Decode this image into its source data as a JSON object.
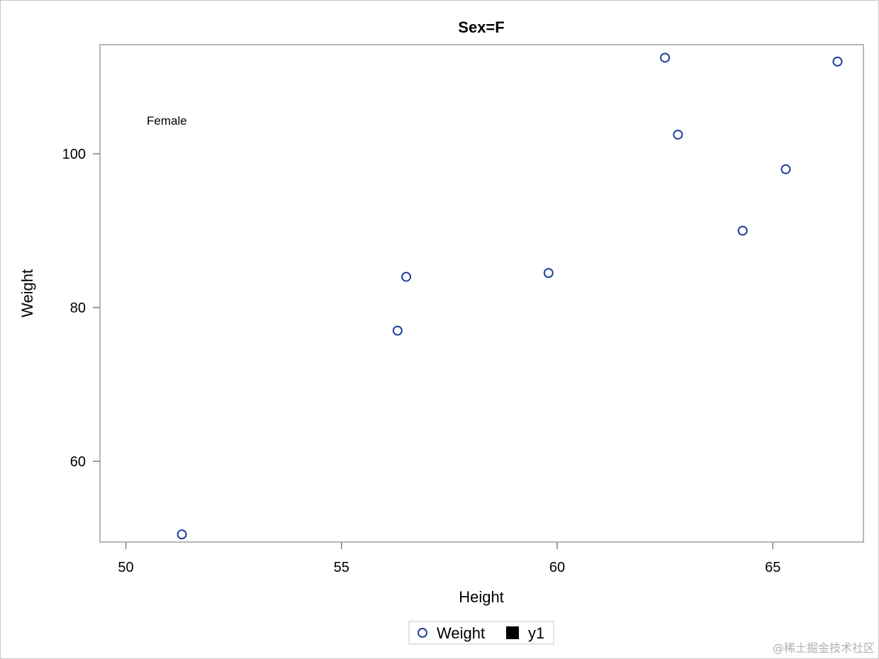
{
  "chart_data": {
    "type": "scatter",
    "title": "Sex=F",
    "xlabel": "Height",
    "ylabel": "Weight",
    "xlim": [
      49.4,
      67.1
    ],
    "ylim": [
      49.5,
      114.2
    ],
    "x_ticks": [
      50,
      55,
      60,
      65
    ],
    "y_ticks": [
      60,
      80,
      100
    ],
    "series": [
      {
        "name": "Weight",
        "marker": "open-circle",
        "color": "#1f3f99",
        "points": [
          {
            "x": 51.3,
            "y": 50.5
          },
          {
            "x": 56.3,
            "y": 77.0
          },
          {
            "x": 56.5,
            "y": 84.0
          },
          {
            "x": 59.8,
            "y": 84.5
          },
          {
            "x": 62.5,
            "y": 112.5
          },
          {
            "x": 62.8,
            "y": 102.5
          },
          {
            "x": 64.3,
            "y": 90.0
          },
          {
            "x": 65.3,
            "y": 98.0
          },
          {
            "x": 66.5,
            "y": 112.0
          }
        ]
      }
    ],
    "annotation": "Female",
    "grid": false,
    "legend": {
      "placement": "bottom",
      "entries": [
        {
          "label": "Weight",
          "symbol": "open-circle",
          "color": "#1f3f99"
        },
        {
          "label": "y1",
          "symbol": "filled-square",
          "color": "#000000"
        }
      ]
    }
  },
  "watermark": "@稀土掘金技术社区"
}
